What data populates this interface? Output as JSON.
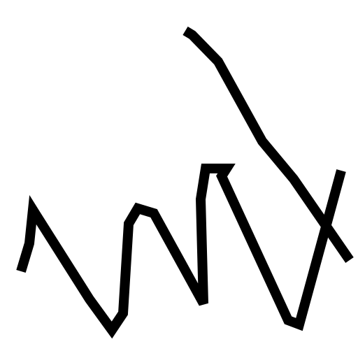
{
  "drawing": {
    "background_color": "#ffffff",
    "ink_color": "#000000",
    "stroke_count": 2
  }
}
